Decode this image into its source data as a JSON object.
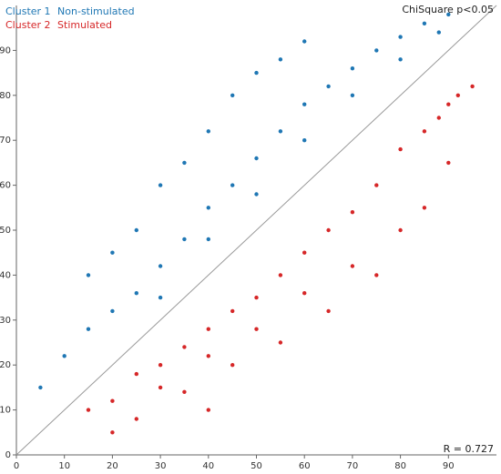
{
  "chart_data": {
    "type": "scatter",
    "title": "",
    "xlabel": "",
    "ylabel": "",
    "xlim": [
      0,
      100
    ],
    "ylim": [
      0,
      100
    ],
    "x_ticks": [
      0,
      10,
      20,
      30,
      40,
      50,
      60,
      70,
      80,
      90
    ],
    "y_ticks": [
      0,
      10,
      20,
      30,
      40,
      50,
      60,
      70,
      80,
      90
    ],
    "grid": false,
    "legend_position": "top-left",
    "reference_line": {
      "from": [
        0,
        0
      ],
      "to": [
        100,
        100
      ],
      "color": "#999999"
    },
    "series": [
      {
        "cluster": "Cluster 1",
        "name": "Non-stimulated",
        "color": "#1f77b4",
        "region": "above diagonal",
        "sample_points": [
          [
            5,
            15
          ],
          [
            10,
            22
          ],
          [
            15,
            28
          ],
          [
            20,
            32
          ],
          [
            25,
            36
          ],
          [
            30,
            42
          ],
          [
            35,
            48
          ],
          [
            40,
            55
          ],
          [
            45,
            60
          ],
          [
            50,
            66
          ],
          [
            55,
            72
          ],
          [
            60,
            78
          ],
          [
            65,
            82
          ],
          [
            70,
            86
          ],
          [
            75,
            90
          ],
          [
            80,
            93
          ],
          [
            85,
            96
          ],
          [
            90,
            98
          ],
          [
            20,
            45
          ],
          [
            30,
            60
          ],
          [
            40,
            72
          ],
          [
            50,
            85
          ],
          [
            60,
            92
          ],
          [
            25,
            50
          ],
          [
            35,
            65
          ],
          [
            45,
            80
          ],
          [
            55,
            88
          ],
          [
            15,
            40
          ],
          [
            30,
            35
          ],
          [
            40,
            48
          ],
          [
            50,
            58
          ],
          [
            60,
            70
          ],
          [
            70,
            80
          ],
          [
            80,
            88
          ],
          [
            88,
            94
          ]
        ]
      },
      {
        "cluster": "Cluster 2",
        "name": "Stimulated",
        "color": "#d62728",
        "region": "below diagonal",
        "sample_points": [
          [
            15,
            10
          ],
          [
            20,
            12
          ],
          [
            25,
            18
          ],
          [
            30,
            20
          ],
          [
            35,
            24
          ],
          [
            40,
            28
          ],
          [
            45,
            32
          ],
          [
            50,
            35
          ],
          [
            55,
            40
          ],
          [
            60,
            45
          ],
          [
            65,
            50
          ],
          [
            70,
            54
          ],
          [
            75,
            60
          ],
          [
            80,
            68
          ],
          [
            85,
            72
          ],
          [
            90,
            78
          ],
          [
            95,
            82
          ],
          [
            25,
            8
          ],
          [
            35,
            14
          ],
          [
            45,
            20
          ],
          [
            55,
            25
          ],
          [
            65,
            32
          ],
          [
            75,
            40
          ],
          [
            85,
            55
          ],
          [
            90,
            65
          ],
          [
            30,
            15
          ],
          [
            40,
            22
          ],
          [
            50,
            28
          ],
          [
            60,
            36
          ],
          [
            70,
            42
          ],
          [
            80,
            50
          ],
          [
            88,
            75
          ],
          [
            92,
            80
          ],
          [
            20,
            5
          ],
          [
            40,
            10
          ]
        ]
      }
    ],
    "annotations": {
      "top_right": "ChiSquare p<0.05",
      "bottom_right": "R = 0.727"
    }
  }
}
